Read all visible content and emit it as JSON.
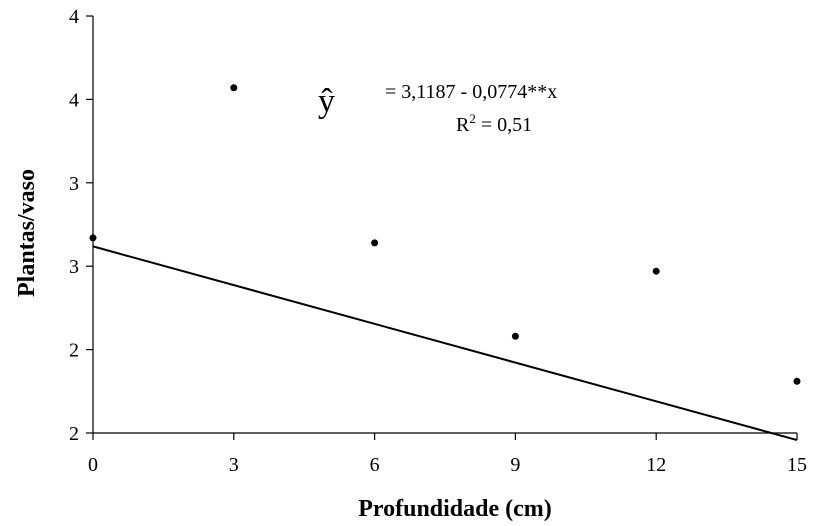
{
  "chart_data": {
    "type": "scatter",
    "title": "",
    "xlabel": "Profundidade (cm)",
    "ylabel": "Plantas/vaso",
    "x_ticks": [
      "0",
      "3",
      "6",
      "9",
      "12",
      "15"
    ],
    "y_ticks": [
      "2",
      "2",
      "3",
      "3",
      "4",
      "4"
    ],
    "xlim": [
      0,
      15
    ],
    "ylim": [
      2,
      4.5
    ],
    "grid": false,
    "legend": "none",
    "series": [
      {
        "x": [
          0,
          3,
          6,
          9,
          12,
          15
        ],
        "y": [
          3.17,
          4.07,
          3.14,
          2.58,
          2.97,
          2.31
        ]
      }
    ],
    "trendline": {
      "intercept": 3.1187,
      "slope": -0.0774,
      "x": [
        0,
        15
      ],
      "y": [
        3.1187,
        1.9577
      ]
    },
    "annotation": {
      "symbol": "ŷ",
      "equation": "= 3,1187 - 0,0774**x",
      "r2_label": "R",
      "r2_sup": "2",
      "r2_value": " = 0,51"
    }
  }
}
